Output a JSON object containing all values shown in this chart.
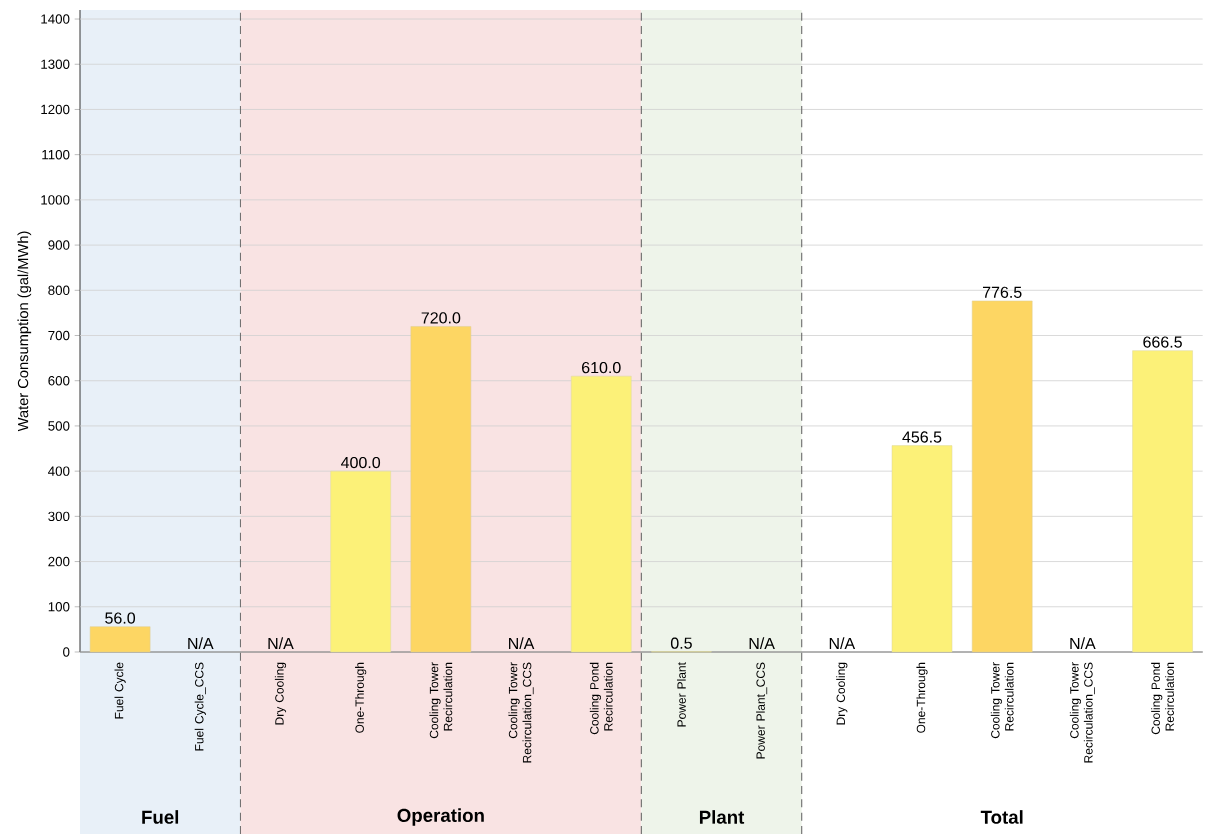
{
  "chart_data": {
    "type": "bar",
    "ylabel": "Water Consumption (gal/MWh)",
    "categories": [
      "Fuel Cycle",
      "Fuel Cycle_CCS",
      "Dry Cooling",
      "One-Through",
      "Cooling Tower Recirculation",
      "Cooling Tower Recirculation_CCS",
      "Cooling Pond Recirculation",
      "Power Plant",
      "Power Plant_CCS",
      "Dry Cooling",
      "One-Through",
      "Cooling Tower Recirculation",
      "Cooling Tower Recirculation_CCS",
      "Cooling Pond Recirculation"
    ],
    "values": [
      56,
      null,
      null,
      400,
      720,
      null,
      610,
      0.5,
      null,
      null,
      456.5,
      776.5,
      null,
      666.5
    ],
    "value_labels": [
      "56.0",
      "N/A",
      "N/A",
      "400.0",
      "720.0",
      "N/A",
      "610.0",
      "0.5",
      "N/A",
      "N/A",
      "456.5",
      "776.5",
      "N/A",
      "666.5"
    ],
    "colors": [
      "#fdd663",
      "#fcf178",
      "#fcf178",
      "#fcf178",
      "#fdd663",
      "#fcf178",
      "#fcf178",
      "#fcf178",
      "#fcf178",
      "#fcf178",
      "#fcf178",
      "#fdd663",
      "#fcf178",
      "#fcf178"
    ],
    "ylim": [
      0,
      1420
    ],
    "yticks": [
      0,
      100,
      200,
      300,
      400,
      500,
      600,
      700,
      800,
      900,
      1000,
      1100,
      1200,
      1300,
      1400
    ],
    "grid": "y",
    "bands": [
      {
        "axis": "x",
        "from": "Fuel Cycle",
        "to": "Fuel Cycle_CCS",
        "label": "Fuel",
        "color": "#e8f0f8"
      },
      {
        "axis": "x",
        "from": "Dry Cooling",
        "to": "Cooling Pond Recirculation",
        "label": "Operation",
        "color": "#f9e3e3"
      },
      {
        "axis": "x",
        "from": "Power Plant",
        "to": "Power Plant_CCS",
        "label": "Plant",
        "color": "#eef4ea"
      }
    ],
    "annotations": [
      "Total"
    ]
  }
}
